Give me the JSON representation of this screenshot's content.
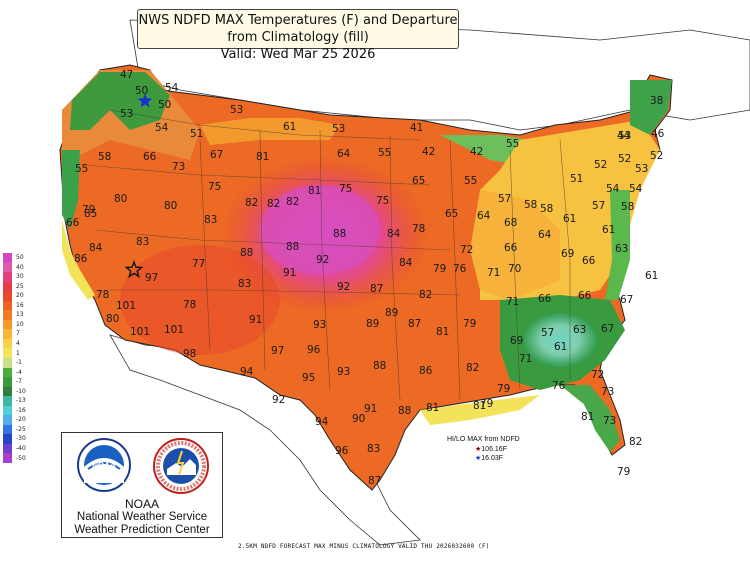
{
  "title": {
    "line1": "NWS NDFD MAX Temperatures (F) and Departure from Climatology (fill)",
    "line2": "Valid: Wed Mar 25 2026"
  },
  "colorbar": {
    "labels": [
      "50",
      "40",
      "30",
      "25",
      "20",
      "16",
      "13",
      "10",
      "7",
      "4",
      "1",
      "-1",
      "-4",
      "-7",
      "-10",
      "-13",
      "-16",
      "-20",
      "-25",
      "-30",
      "-40",
      "-50"
    ],
    "colors": [
      "#d447c2",
      "#e05aa8",
      "#e2407a",
      "#e63a4d",
      "#e8472c",
      "#ee5f22",
      "#f27a22",
      "#f59a2a",
      "#f8b737",
      "#f8d04a",
      "#f2e35a",
      "#c8e08a",
      "#4cae3a",
      "#3a9a40",
      "#2f7f3e",
      "#3fb7a5",
      "#4fd0d6",
      "#4fb0e6",
      "#2f77e0",
      "#2447c8",
      "#6c3fd0",
      "#a83ecf"
    ]
  },
  "temperatures": [
    {
      "text": "47"
    },
    {
      "text": "50"
    },
    {
      "text": "54"
    },
    {
      "text": "53"
    },
    {
      "text": "50"
    },
    {
      "text": "53"
    },
    {
      "text": "54"
    },
    {
      "text": "51"
    },
    {
      "text": "61"
    },
    {
      "text": "53"
    },
    {
      "text": "41"
    },
    {
      "text": "58"
    },
    {
      "text": "66"
    },
    {
      "text": "67"
    },
    {
      "text": "81"
    },
    {
      "text": "64"
    },
    {
      "text": "55"
    },
    {
      "text": "42"
    },
    {
      "text": "42"
    },
    {
      "text": "55"
    },
    {
      "text": "53"
    },
    {
      "text": "38"
    },
    {
      "text": "55"
    },
    {
      "text": "73"
    },
    {
      "text": "75"
    },
    {
      "text": "81"
    },
    {
      "text": "75"
    },
    {
      "text": "65"
    },
    {
      "text": "55"
    },
    {
      "text": "44"
    },
    {
      "text": "46"
    },
    {
      "text": "52"
    },
    {
      "text": "52"
    },
    {
      "text": "52"
    },
    {
      "text": "51"
    },
    {
      "text": "53"
    },
    {
      "text": "79"
    },
    {
      "text": "80"
    },
    {
      "text": "80"
    },
    {
      "text": "82"
    },
    {
      "text": "82"
    },
    {
      "text": "75"
    },
    {
      "text": "57"
    },
    {
      "text": "58"
    },
    {
      "text": "57"
    },
    {
      "text": "54"
    },
    {
      "text": "54"
    },
    {
      "text": "66"
    },
    {
      "text": "85"
    },
    {
      "text": "83"
    },
    {
      "text": "82"
    },
    {
      "text": "88"
    },
    {
      "text": "84"
    },
    {
      "text": "78"
    },
    {
      "text": "65"
    },
    {
      "text": "64"
    },
    {
      "text": "68"
    },
    {
      "text": "58"
    },
    {
      "text": "61"
    },
    {
      "text": "58"
    },
    {
      "text": "84"
    },
    {
      "text": "83"
    },
    {
      "text": "88"
    },
    {
      "text": "88"
    },
    {
      "text": "72"
    },
    {
      "text": "66"
    },
    {
      "text": "64"
    },
    {
      "text": "61"
    },
    {
      "text": "63"
    },
    {
      "text": "86"
    },
    {
      "text": "77"
    },
    {
      "text": "91"
    },
    {
      "text": "92"
    },
    {
      "text": "84"
    },
    {
      "text": "79"
    },
    {
      "text": "76"
    },
    {
      "text": "71"
    },
    {
      "text": "70"
    },
    {
      "text": "69"
    },
    {
      "text": "66"
    },
    {
      "text": "61"
    },
    {
      "text": "97"
    },
    {
      "text": "83"
    },
    {
      "text": "92"
    },
    {
      "text": "87"
    },
    {
      "text": "82"
    },
    {
      "text": "71"
    },
    {
      "text": "66"
    },
    {
      "text": "66"
    },
    {
      "text": "67"
    },
    {
      "text": "78"
    },
    {
      "text": "101"
    },
    {
      "text": "78"
    },
    {
      "text": "80"
    },
    {
      "text": "91"
    },
    {
      "text": "93"
    },
    {
      "text": "89"
    },
    {
      "text": "89"
    },
    {
      "text": "87"
    },
    {
      "text": "81"
    },
    {
      "text": "79"
    },
    {
      "text": "57"
    },
    {
      "text": "63"
    },
    {
      "text": "67"
    },
    {
      "text": "101"
    },
    {
      "text": "101"
    },
    {
      "text": "69"
    },
    {
      "text": "61"
    },
    {
      "text": "98"
    },
    {
      "text": "97"
    },
    {
      "text": "96"
    },
    {
      "text": "88"
    },
    {
      "text": "71"
    },
    {
      "text": "94"
    },
    {
      "text": "95"
    },
    {
      "text": "93"
    },
    {
      "text": "86"
    },
    {
      "text": "82"
    },
    {
      "text": "72"
    },
    {
      "text": "76"
    },
    {
      "text": "79"
    },
    {
      "text": "73"
    },
    {
      "text": "92"
    },
    {
      "text": "91"
    },
    {
      "text": "88"
    },
    {
      "text": "81"
    },
    {
      "text": "81"
    },
    {
      "text": "79"
    },
    {
      "text": "94"
    },
    {
      "text": "90"
    },
    {
      "text": "81"
    },
    {
      "text": "73"
    },
    {
      "text": "96"
    },
    {
      "text": "83"
    },
    {
      "text": "82"
    },
    {
      "text": "87"
    },
    {
      "text": "79"
    }
  ],
  "markers": [
    {
      "kind": "high",
      "color": "#111111"
    },
    {
      "kind": "low",
      "color": "#1a2fd0"
    }
  ],
  "hilo_legend": {
    "heading": "HI/LO MAX from NDFD",
    "high_value": "106.16F",
    "low_value": "16.03F",
    "high_color": "#8b0000",
    "low_color": "#1a2fd0"
  },
  "logos": {
    "noaa_label": "NOAA",
    "line1": "NOAA",
    "line2": "National Weather Service",
    "line3": "Weather Prediction Center"
  },
  "footer": "2.5KM NDFD FORECAST MAX MINUS CLIMATOLOGY VALID THU 2026032600 (F)"
}
